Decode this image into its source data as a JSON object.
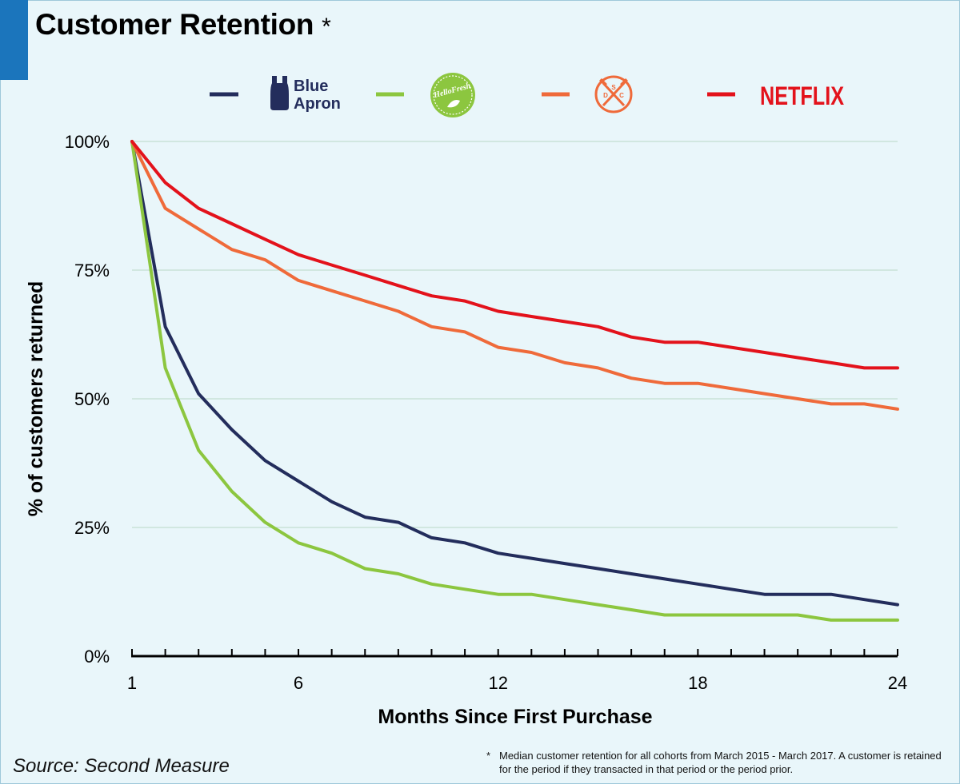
{
  "title": "Customer Retention",
  "title_marker": "*",
  "source": "Source: Second Measure",
  "footnote": {
    "marker": "*",
    "text": "Median customer retention for all cohorts from March 2015 - March 2017. A customer is retained for the period if they transacted in that period or the period prior."
  },
  "legend": {
    "blue_apron_lines": [
      "Blue",
      "Apron"
    ],
    "hellofresh_text": "HelloFresh",
    "dsc_letters": [
      "D",
      "S",
      "C"
    ],
    "netflix_text": "NETFLIX"
  },
  "chart_data": {
    "type": "line",
    "xlabel": "Months Since First Purchase",
    "ylabel": "% of customers returned",
    "xlim": [
      1,
      24
    ],
    "ylim": [
      0,
      100
    ],
    "xticks": [
      1,
      6,
      12,
      18,
      24
    ],
    "xtick_labels": [
      "1",
      "6",
      "12",
      "18",
      "24"
    ],
    "yticks": [
      0,
      25,
      50,
      75,
      100
    ],
    "ytick_labels": [
      "0%",
      "25%",
      "50%",
      "75%",
      "100%"
    ],
    "grid": "horizontal",
    "legend_position": "top",
    "x": [
      1,
      2,
      3,
      4,
      5,
      6,
      7,
      8,
      9,
      10,
      11,
      12,
      13,
      14,
      15,
      16,
      17,
      18,
      19,
      20,
      21,
      22,
      23,
      24
    ],
    "series": [
      {
        "key": "blue_apron",
        "color": "#232d5c",
        "values": [
          100,
          64,
          51,
          44,
          38,
          34,
          30,
          27,
          26,
          23,
          22,
          20,
          19,
          18,
          17,
          16,
          15,
          14,
          13,
          12,
          12,
          12,
          11,
          10
        ]
      },
      {
        "key": "hellofresh",
        "color": "#8cc63f",
        "values": [
          100,
          56,
          40,
          32,
          26,
          22,
          20,
          17,
          16,
          14,
          13,
          12,
          12,
          11,
          10,
          9,
          8,
          8,
          8,
          8,
          8,
          7,
          7,
          7
        ]
      },
      {
        "key": "dollar_shave_club",
        "color": "#ef6a3a",
        "values": [
          100,
          87,
          83,
          79,
          77,
          73,
          71,
          69,
          67,
          64,
          63,
          60,
          59,
          57,
          56,
          54,
          53,
          53,
          52,
          51,
          50,
          49,
          49,
          48
        ]
      },
      {
        "key": "netflix",
        "color": "#e3121b",
        "values": [
          100,
          92,
          87,
          84,
          81,
          78,
          76,
          74,
          72,
          70,
          69,
          67,
          66,
          65,
          64,
          62,
          61,
          61,
          60,
          59,
          58,
          57,
          56,
          56
        ]
      }
    ]
  }
}
